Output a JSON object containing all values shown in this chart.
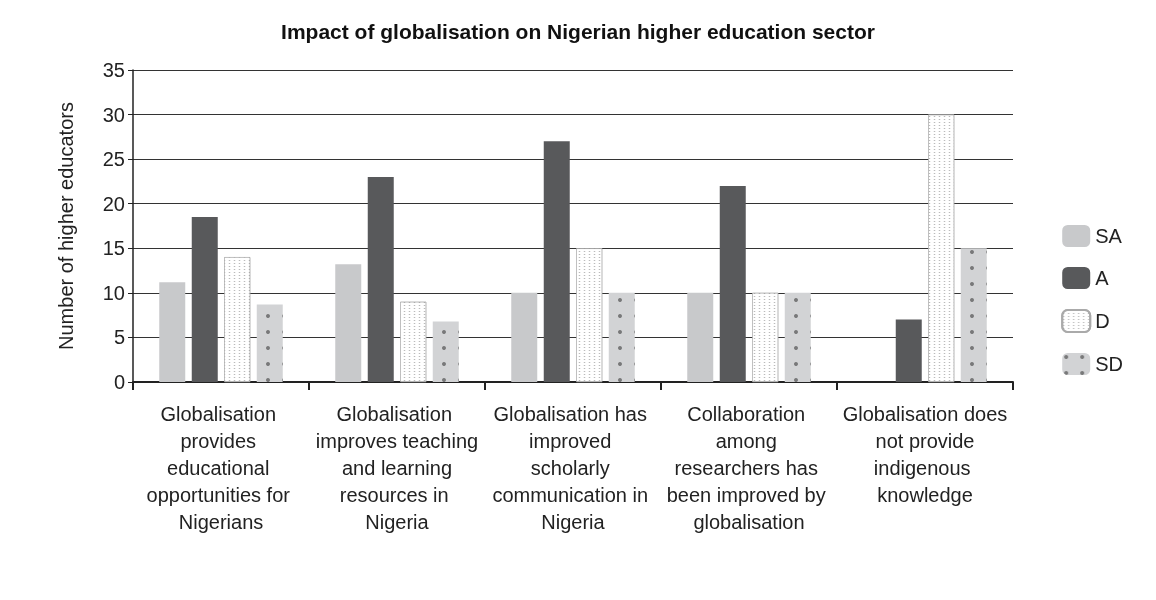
{
  "chart_data": {
    "type": "bar",
    "title": "Impact of globalisation on Nigerian higher education sector",
    "ylabel": "Number of higher educators",
    "categories": [
      "Globalisation provides educational opportunities for Nigerians",
      "Globalisation improves teaching and learning resources in Nigeria",
      "Globalisation has improved scholarly communication in Nigeria",
      "Collaboration among researchers has been improved by globalisation",
      "Globalisation does not provide indigenous knowledge"
    ],
    "series": [
      {
        "name": "SA",
        "color": "#c8c9cb",
        "values": [
          11.2,
          13.2,
          10,
          10,
          0
        ]
      },
      {
        "name": "A",
        "color": "#58595b",
        "values": [
          18.5,
          23,
          27,
          22,
          7
        ]
      },
      {
        "name": "D",
        "color": "#ffffff",
        "values": [
          14,
          9,
          15,
          10,
          30
        ]
      },
      {
        "name": "SD",
        "color": "#d2d3d5",
        "values": [
          8.7,
          6.8,
          10,
          10,
          15
        ]
      }
    ],
    "ylim": [
      0,
      35
    ],
    "yticks": [
      0,
      5,
      10,
      15,
      20,
      25,
      30,
      35
    ],
    "grid": "y",
    "legend": "right"
  }
}
